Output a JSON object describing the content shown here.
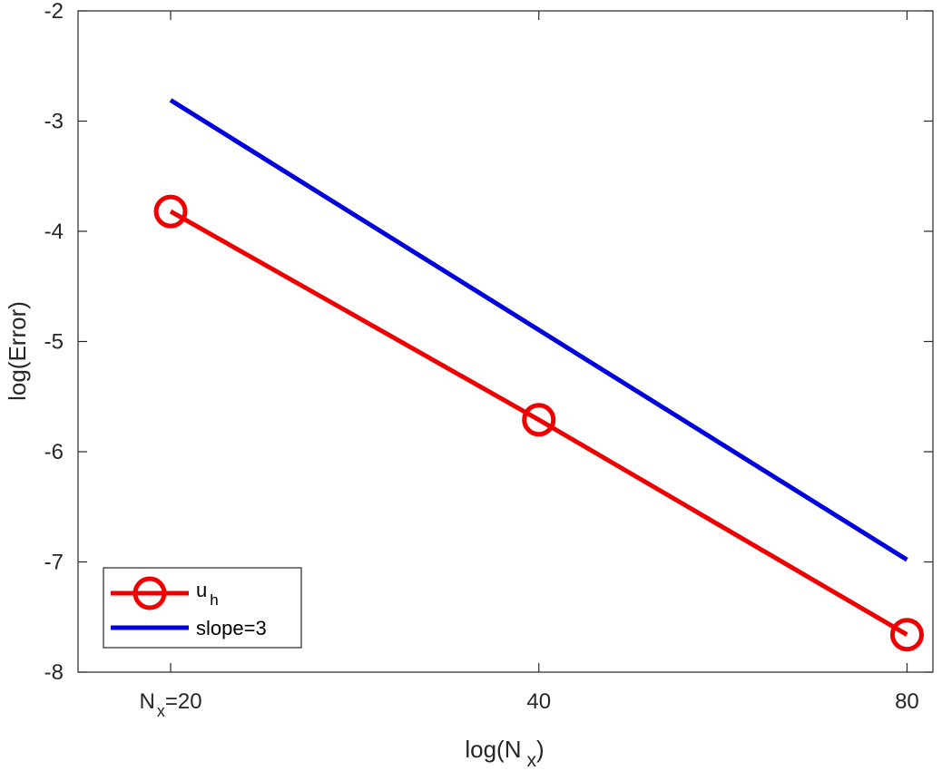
{
  "chart_data": {
    "type": "line",
    "title": "",
    "xlabel": {
      "main": "log(N",
      "sub": "x",
      "close": ")"
    },
    "ylabel": "log(Error)",
    "x_scale": "log2",
    "xlim": [
      16.8,
      84
    ],
    "ylim": [
      -8,
      -2
    ],
    "x_ticks": [
      {
        "value": 20,
        "main": "N",
        "sub": "x",
        "rest": "=20"
      },
      {
        "value": 40,
        "main": "40",
        "sub": "",
        "rest": ""
      },
      {
        "value": 80,
        "main": "80",
        "sub": "",
        "rest": ""
      }
    ],
    "y_ticks": [
      -2,
      -3,
      -4,
      -5,
      -6,
      -7,
      -8
    ],
    "series": [
      {
        "name": "u",
        "name_sub": "h",
        "color": "#ee0000",
        "marker": "circle",
        "x": [
          20,
          40,
          80
        ],
        "y": [
          -3.82,
          -5.71,
          -7.66
        ]
      },
      {
        "name": "slope=3",
        "name_sub": "",
        "color": "#0000dd",
        "marker": "none",
        "x": [
          20,
          80
        ],
        "y": [
          -2.81,
          -6.98
        ]
      }
    ],
    "legend_position": "bottom-left",
    "grid": false
  }
}
